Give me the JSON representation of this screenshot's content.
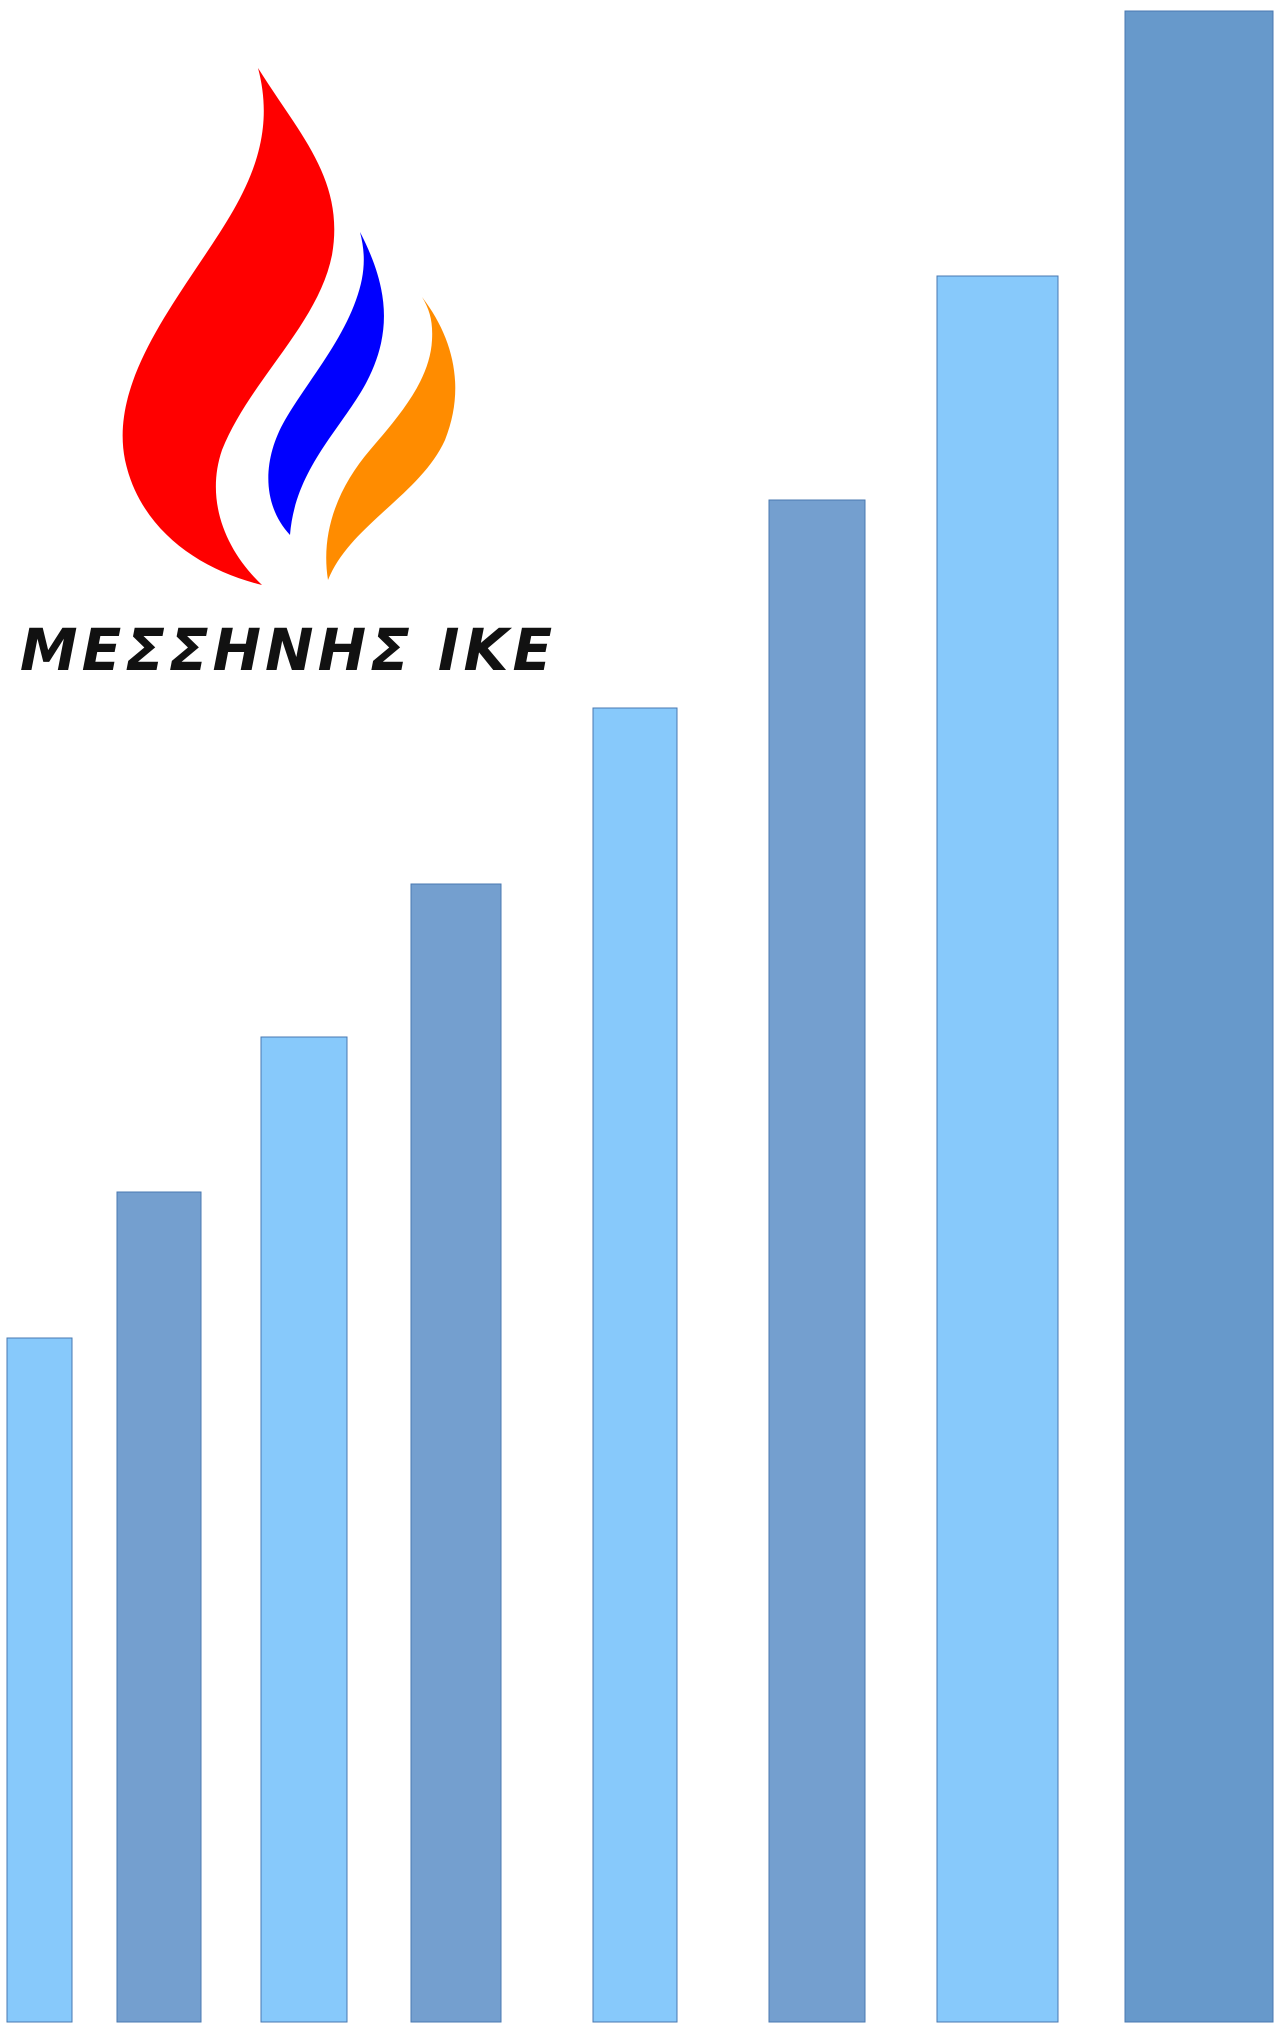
{
  "logo": {
    "company_name": "ΜΕΣΣΗΝΗΣ ΙΚΕ",
    "flame_colors": {
      "red": "#ff0000",
      "blue": "#0000ff",
      "orange": "#ff8c00"
    }
  },
  "bars": {
    "colors": {
      "light": "#87c9fb",
      "dark": "#749fcf",
      "darkest": "#6799cb",
      "stroke": "#4a78b0"
    },
    "items": [
      {
        "value": 684,
        "tone": "light"
      },
      {
        "value": 830,
        "tone": "dark"
      },
      {
        "value": 985,
        "tone": "light"
      },
      {
        "value": 1138,
        "tone": "dark"
      },
      {
        "value": 1314,
        "tone": "light"
      },
      {
        "value": 1522,
        "tone": "dark"
      },
      {
        "value": 1746,
        "tone": "light"
      },
      {
        "value": 2011,
        "tone": "darkest"
      }
    ],
    "max": 2011
  }
}
